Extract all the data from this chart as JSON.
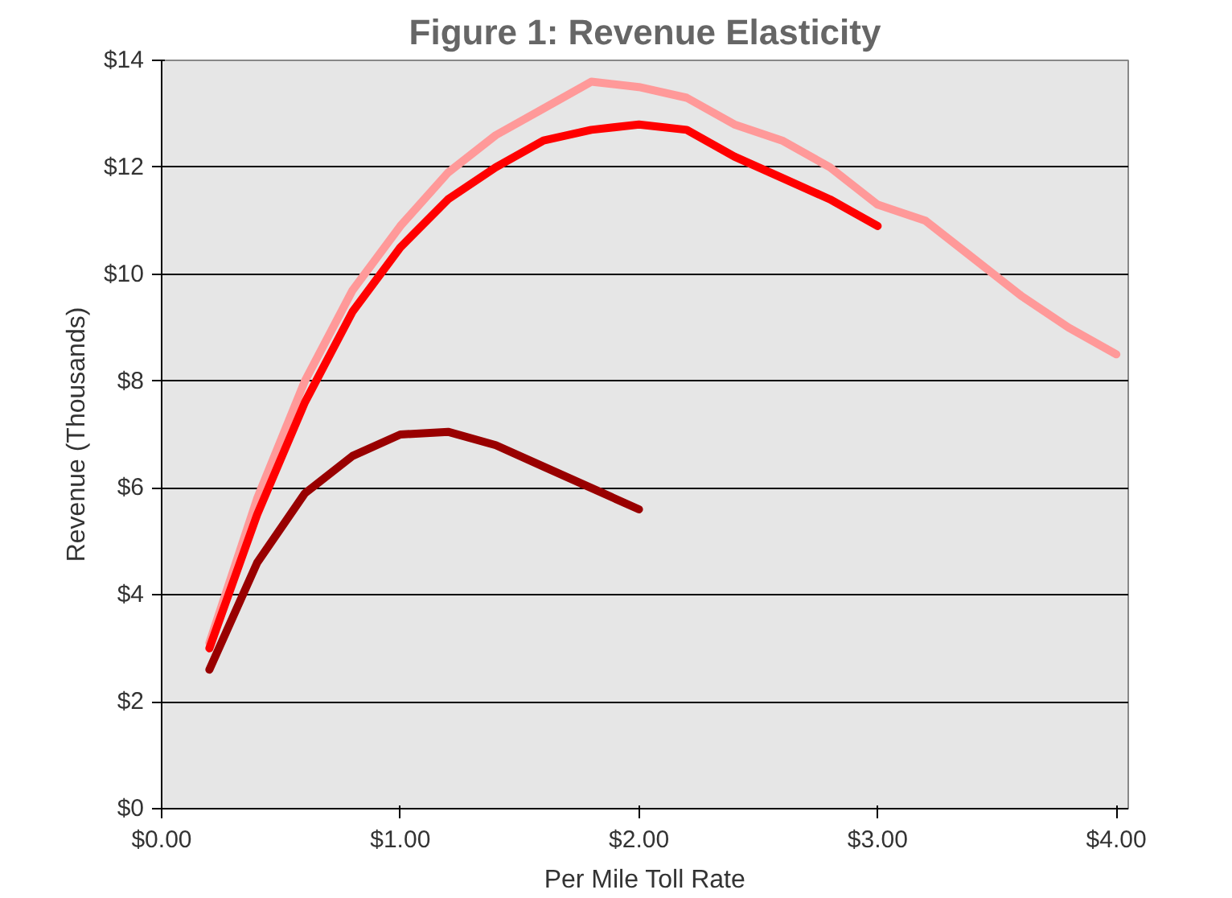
{
  "chart_data": {
    "type": "line",
    "title": "Figure 1: Revenue Elasticity",
    "xlabel": "Per Mile Toll Rate",
    "ylabel": "Revenue (Thousands)",
    "xlim": [
      0,
      4.05
    ],
    "ylim": [
      0,
      14
    ],
    "xticks": [
      {
        "value": 0,
        "label": "$0.00"
      },
      {
        "value": 1,
        "label": "$1.00"
      },
      {
        "value": 2,
        "label": "$2.00"
      },
      {
        "value": 3,
        "label": "$3.00"
      },
      {
        "value": 4,
        "label": "$4.00"
      }
    ],
    "yticks": [
      {
        "value": 0,
        "label": "$0"
      },
      {
        "value": 2,
        "label": "$2"
      },
      {
        "value": 4,
        "label": "$4"
      },
      {
        "value": 6,
        "label": "$6"
      },
      {
        "value": 8,
        "label": "$8"
      },
      {
        "value": 10,
        "label": "$10"
      },
      {
        "value": 12,
        "label": "$12"
      },
      {
        "value": 14,
        "label": "$14"
      }
    ],
    "grid": "y",
    "marker": "none",
    "line_style": "solid",
    "series": [
      {
        "color": "#ff9999",
        "x": [
          0.2,
          0.4,
          0.6,
          0.8,
          1.0,
          1.2,
          1.4,
          1.6,
          1.8,
          2.0,
          2.2,
          2.4,
          2.6,
          2.8,
          3.0,
          3.2,
          3.4,
          3.6,
          3.8,
          4.0
        ],
        "values": [
          3.1,
          5.8,
          8.0,
          9.7,
          10.9,
          11.9,
          12.6,
          13.1,
          13.6,
          13.5,
          13.3,
          12.8,
          12.5,
          12.0,
          11.3,
          11.0,
          10.3,
          9.6,
          9.0,
          8.5
        ]
      },
      {
        "color": "#ff0000",
        "x": [
          0.2,
          0.4,
          0.6,
          0.8,
          1.0,
          1.2,
          1.4,
          1.6,
          1.8,
          2.0,
          2.2,
          2.4,
          2.6,
          2.8,
          3.0
        ],
        "values": [
          3.0,
          5.5,
          7.6,
          9.3,
          10.5,
          11.4,
          12.0,
          12.5,
          12.7,
          12.8,
          12.7,
          12.2,
          11.8,
          11.4,
          10.9
        ]
      },
      {
        "color": "#990000",
        "x": [
          0.2,
          0.4,
          0.6,
          0.8,
          1.0,
          1.2,
          1.4,
          1.6,
          1.8,
          2.0
        ],
        "values": [
          2.6,
          4.6,
          5.9,
          6.6,
          7.0,
          7.05,
          6.8,
          6.4,
          6.0,
          5.6
        ]
      }
    ]
  }
}
